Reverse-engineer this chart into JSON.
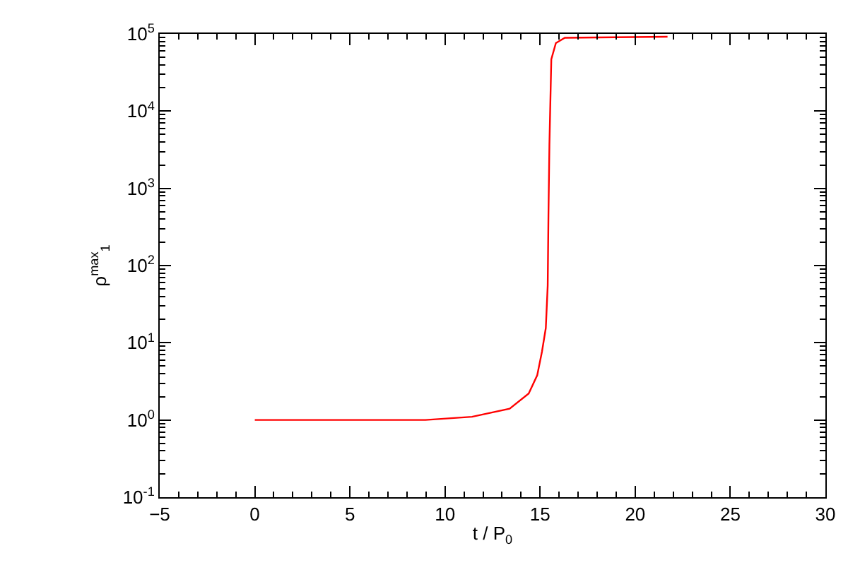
{
  "chart_data": {
    "type": "line",
    "xlabel": "t / P$_{0}$",
    "ylabel": "ρ$^{max}$$_{1}$",
    "series": [
      {
        "color": "#ff0000",
        "x": [
          0,
          5,
          8.97,
          11.42,
          13.4,
          14.4,
          14.85,
          15.1,
          15.3,
          15.4,
          15.44,
          15.49,
          15.59,
          15.83,
          16.3,
          21.7
        ],
        "values": [
          1,
          1,
          1,
          1.1,
          1.4,
          2.2,
          3.8,
          7.7,
          15.5,
          55,
          455,
          3700,
          47000,
          76000,
          89000,
          92000
        ]
      }
    ],
    "log": "y",
    "xlim": [
      -5,
      30
    ],
    "xticks": [
      -5,
      0,
      5,
      10,
      15,
      20,
      25,
      30
    ],
    "ylim": [
      0.1,
      100000
    ],
    "yticks": [
      {
        "value": 0.1,
        "label": "10$^{-1}$"
      },
      {
        "value": 1,
        "label": "10$^{0}$"
      },
      {
        "value": 10,
        "label": "10$^{1}$"
      },
      {
        "value": 100,
        "label": "10$^{2}$"
      },
      {
        "value": 1000,
        "label": "10$^{3}$"
      },
      {
        "value": 10000,
        "label": "10$^{4}$"
      },
      {
        "value": 100000,
        "label": "10$^{5}$"
      }
    ],
    "marker": "none",
    "line_style": "solid"
  }
}
